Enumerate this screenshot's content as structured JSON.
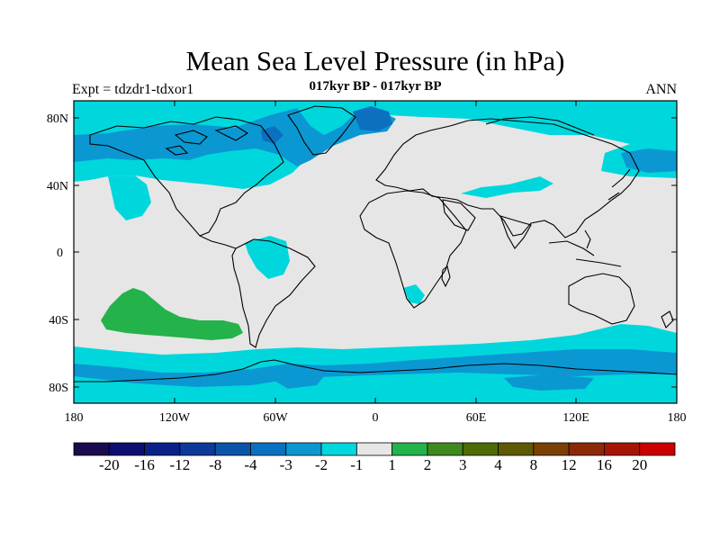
{
  "map": {
    "title": "Mean Sea Level Pressure (in hPa)",
    "subtitle": "017kyr BP - 017kyr BP",
    "left_label": "Expt = tdzdr1-tdxor1",
    "right_label": "ANN",
    "projection": "cylindrical equidistant",
    "lon_range": [
      -180,
      180
    ],
    "lat_range": [
      -90,
      90
    ],
    "lat_ticks": [
      "80N",
      "40N",
      "0",
      "40S",
      "80S"
    ],
    "lon_ticks": [
      "180",
      "120W",
      "60W",
      "0",
      "60E",
      "120E",
      "180"
    ]
  },
  "colorbar": {
    "labels": [
      "-20",
      "-16",
      "-12",
      "-8",
      "-4",
      "-3",
      "-2",
      "-1",
      "1",
      "2",
      "3",
      "4",
      "8",
      "12",
      "16",
      "20"
    ],
    "colors": [
      "#1a0a4e",
      "#0c0f6e",
      "#0b2088",
      "#0d3a9a",
      "#0b54aa",
      "#0c70c0",
      "#0b98d2",
      "#00d7dd",
      "#e6e6e6",
      "#24b24a",
      "#3f8a1e",
      "#4e6c08",
      "#5e5a04",
      "#7a4006",
      "#8c2a08",
      "#a61408",
      "#cc0000"
    ]
  },
  "colors": {
    "neutral": "#e6e6e6",
    "light_cyan": "#00d7dd",
    "cyan_blue": "#0b98d2",
    "blue": "#0c70c0",
    "green": "#24b24a",
    "coast": "#000000"
  }
}
